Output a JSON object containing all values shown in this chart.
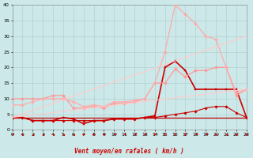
{
  "xlabel": "Vent moyen/en rafales ( km/h )",
  "xlim": [
    0,
    23
  ],
  "ylim": [
    0,
    40
  ],
  "yticks": [
    0,
    5,
    10,
    15,
    20,
    25,
    30,
    35,
    40
  ],
  "xticks": [
    0,
    1,
    2,
    3,
    4,
    5,
    6,
    7,
    8,
    9,
    10,
    11,
    12,
    13,
    14,
    15,
    16,
    17,
    18,
    19,
    20,
    21,
    22,
    23
  ],
  "background_color": "#cce8e8",
  "grid_color": "#aacccc",
  "series": [
    {
      "x": [
        0,
        1,
        2,
        3,
        4,
        5,
        6,
        7,
        8,
        9,
        10,
        11,
        12,
        13,
        14,
        15,
        16,
        17,
        18,
        19,
        20,
        21,
        22,
        23
      ],
      "y": [
        4,
        4,
        4,
        4,
        4,
        4,
        4,
        4,
        4,
        4,
        4,
        4,
        4,
        4,
        4,
        4,
        4,
        4,
        4,
        4,
        4,
        4,
        4,
        4
      ],
      "color": "#bb0000",
      "linewidth": 0.9,
      "marker": null,
      "linestyle": "-"
    },
    {
      "x": [
        0,
        1,
        2,
        3,
        4,
        5,
        6,
        7,
        8,
        9,
        10,
        11,
        12,
        13,
        14,
        15,
        16,
        17,
        18,
        19,
        20,
        21,
        22,
        23
      ],
      "y": [
        4,
        4,
        3,
        3,
        3,
        3,
        3,
        3,
        3,
        3,
        3.5,
        3.5,
        3.5,
        4,
        4,
        4.5,
        5,
        5.5,
        6,
        7,
        7.5,
        7.5,
        5.5,
        4
      ],
      "color": "#cc0000",
      "linewidth": 0.8,
      "marker": "D",
      "markersize": 1.8,
      "linestyle": "-"
    },
    {
      "x": [
        0,
        1,
        2,
        3,
        4,
        5,
        6,
        7,
        8,
        9,
        10,
        11,
        12,
        13,
        14,
        15,
        16,
        17,
        18,
        19,
        20,
        21,
        22,
        23
      ],
      "y": [
        4,
        4,
        3,
        3,
        3,
        4,
        3.5,
        2,
        3,
        3,
        3.5,
        3.5,
        3.5,
        4,
        4.5,
        20,
        22,
        19,
        13,
        13,
        13,
        13,
        13,
        4
      ],
      "color": "#cc0000",
      "linewidth": 1.2,
      "marker": "s",
      "markersize": 2.0,
      "linestyle": "-"
    },
    {
      "x": [
        0,
        1,
        2,
        3,
        4,
        5,
        6,
        7,
        8,
        9,
        10,
        11,
        12,
        13,
        14,
        15,
        16,
        17,
        18,
        19,
        20,
        21,
        22,
        23
      ],
      "y": [
        10,
        10,
        10,
        10,
        11,
        11,
        7,
        7,
        7.5,
        7,
        8.5,
        8.5,
        9,
        10,
        15,
        15,
        19.5,
        17,
        19,
        19,
        20,
        20,
        11,
        13
      ],
      "color": "#ff9999",
      "linewidth": 0.9,
      "marker": "D",
      "markersize": 2.0,
      "linestyle": "-"
    },
    {
      "x": [
        0,
        1,
        2,
        3,
        4,
        5,
        6,
        7,
        8,
        9,
        10,
        11,
        12,
        13,
        14,
        15,
        16,
        17,
        18,
        19,
        20,
        21,
        22,
        23
      ],
      "y": [
        8,
        8,
        9,
        10,
        10,
        10,
        9,
        7.5,
        8,
        7.5,
        9,
        9,
        9.5,
        10,
        15,
        25,
        40,
        37,
        34,
        30,
        29,
        20,
        12,
        13
      ],
      "color": "#ffaaaa",
      "linewidth": 0.9,
      "marker": "D",
      "markersize": 2.0,
      "linestyle": "-"
    },
    {
      "x": [
        0,
        23
      ],
      "y": [
        4,
        30
      ],
      "color": "#ffcccc",
      "linewidth": 0.8,
      "marker": null,
      "linestyle": "-"
    },
    {
      "x": [
        0,
        23
      ],
      "y": [
        4,
        13
      ],
      "color": "#ffcccc",
      "linewidth": 0.8,
      "marker": null,
      "linestyle": "-"
    }
  ],
  "wind_arrows": {
    "x": [
      0,
      1,
      2,
      3,
      4,
      5,
      6,
      7,
      8,
      9,
      10,
      11,
      12,
      13,
      14,
      15,
      16,
      17,
      18,
      19,
      20,
      21,
      22,
      23
    ],
    "directions": [
      225,
      270,
      315,
      315,
      315,
      315,
      315,
      270,
      270,
      270,
      225,
      225,
      225,
      225,
      180,
      180,
      180,
      180,
      225,
      225,
      270,
      315,
      270,
      270
    ],
    "color": "#cc0000"
  }
}
